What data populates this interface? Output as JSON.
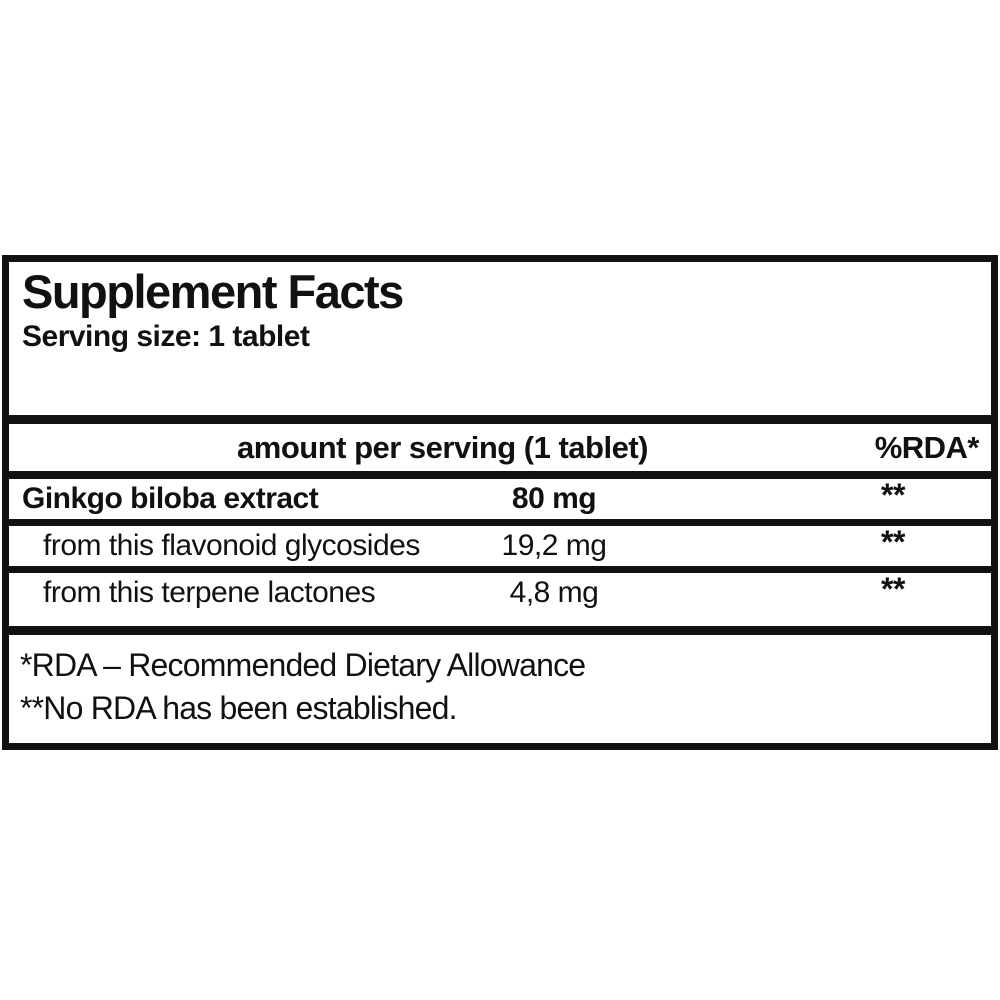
{
  "panel": {
    "title": "Supplement Facts",
    "serving_size": "Serving size: 1 tablet",
    "header": {
      "amount_label": "amount per serving (1 tablet)",
      "rda_label": "%RDA*"
    },
    "rows": [
      {
        "name": "Ginkgo biloba extract",
        "amount": "80 mg",
        "rda": "**"
      },
      {
        "name": "from this flavonoid glycosides",
        "amount": "19,2 mg",
        "rda": "**"
      },
      {
        "name": "from this terpene lactones",
        "amount": "4,8 mg",
        "rda": "**"
      }
    ],
    "footnotes": [
      "*RDA – Recommended Dietary Allowance",
      "**No RDA has been established."
    ],
    "colors": {
      "ink": "#111111",
      "background": "#ffffff"
    }
  }
}
